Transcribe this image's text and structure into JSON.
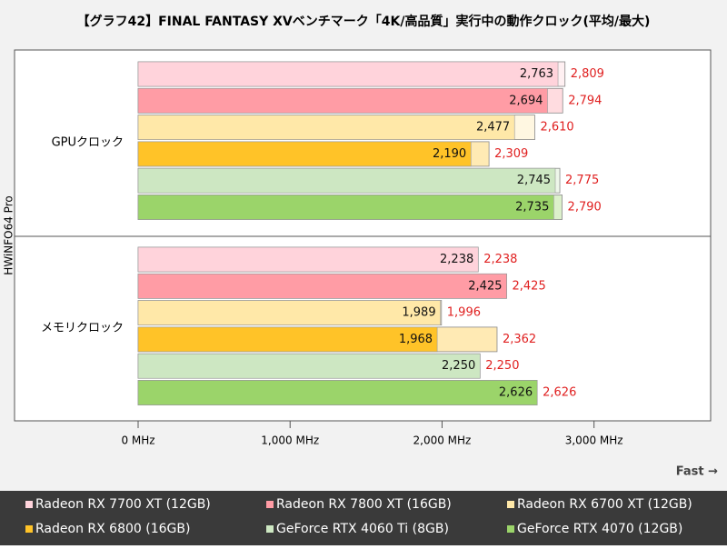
{
  "chart_data": {
    "type": "bar",
    "orientation": "horizontal",
    "title": "【グラフ42】FINAL FANTASY XVベンチマーク「4K/高品質」実行中の動作クロック(平均/最大)",
    "y_label": "HWiNFO64 Pro",
    "annotation": "Fast →",
    "categories": [
      "GPUクロック",
      "メモリクロック"
    ],
    "xlim": [
      0,
      3600
    ],
    "xticks": [
      {
        "value": 0,
        "label": "0 MHz"
      },
      {
        "value": 1000,
        "label": "1,000 MHz"
      },
      {
        "value": 2000,
        "label": "2,000 MHz"
      },
      {
        "value": 3000,
        "label": "3,000 MHz"
      }
    ],
    "grid": false,
    "series": [
      {
        "name": "Radeon RX 7700 XT (12GB)",
        "color": "#ffd3db",
        "values": [
          2763,
          2238
        ],
        "value_labels": [
          "2,763",
          "2,238"
        ],
        "max": [
          2809,
          2238
        ],
        "max_labels": [
          "2,809",
          "2,238"
        ]
      },
      {
        "name": "Radeon RX 7800 XT (16GB)",
        "color": "#ff9ca5",
        "values": [
          2694,
          2425
        ],
        "value_labels": [
          "2,694",
          "2,425"
        ],
        "max": [
          2794,
          2425
        ],
        "max_labels": [
          "2,794",
          "2,425"
        ]
      },
      {
        "name": "Radeon RX 6700 XT (12GB)",
        "color": "#ffe8a8",
        "values": [
          2477,
          1989
        ],
        "value_labels": [
          "2,477",
          "1,989"
        ],
        "max": [
          2610,
          1996
        ],
        "max_labels": [
          "2,610",
          "1,996"
        ]
      },
      {
        "name": "Radeon RX 6800 (16GB)",
        "color": "#ffc328",
        "values": [
          2190,
          1968
        ],
        "value_labels": [
          "2,190",
          "1,968"
        ],
        "max": [
          2309,
          2362
        ],
        "max_labels": [
          "2,309",
          "2,362"
        ]
      },
      {
        "name": "GeForce RTX 4060 Ti (8GB)",
        "color": "#cde7c2",
        "values": [
          2745,
          2250
        ],
        "value_labels": [
          "2,745",
          "2,250"
        ],
        "max": [
          2775,
          2250
        ],
        "max_labels": [
          "2,775",
          "2,250"
        ]
      },
      {
        "name": "GeForce RTX 4070 (12GB)",
        "color": "#9bd46a",
        "values": [
          2735,
          2626
        ],
        "value_labels": [
          "2,735",
          "2,626"
        ],
        "max": [
          2790,
          2626
        ],
        "max_labels": [
          "2,790",
          "2,626"
        ]
      }
    ]
  }
}
